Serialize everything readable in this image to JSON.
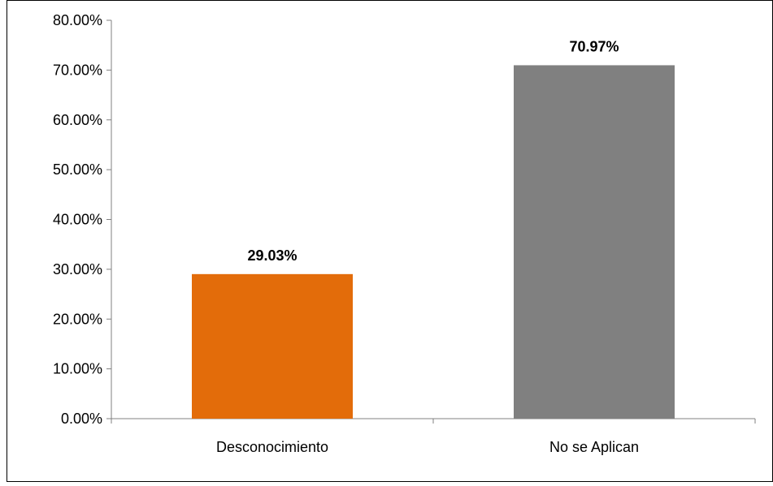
{
  "chart_data": {
    "type": "bar",
    "categories": [
      "Desconocimiento",
      "No se Aplican"
    ],
    "values": [
      29.03,
      70.97
    ],
    "data_labels": [
      "29.03%",
      "70.97%"
    ],
    "colors": [
      "#E36C0A",
      "#808080"
    ],
    "ylim": [
      0,
      80
    ],
    "yticks": [
      0,
      10,
      20,
      30,
      40,
      50,
      60,
      70,
      80
    ],
    "ytick_labels": [
      "0.00%",
      "10.00%",
      "20.00%",
      "30.00%",
      "40.00%",
      "50.00%",
      "60.00%",
      "70.00%",
      "80.00%"
    ],
    "grid": false,
    "legend": "none",
    "border_color": "#000000",
    "axis_color": "#808080"
  }
}
